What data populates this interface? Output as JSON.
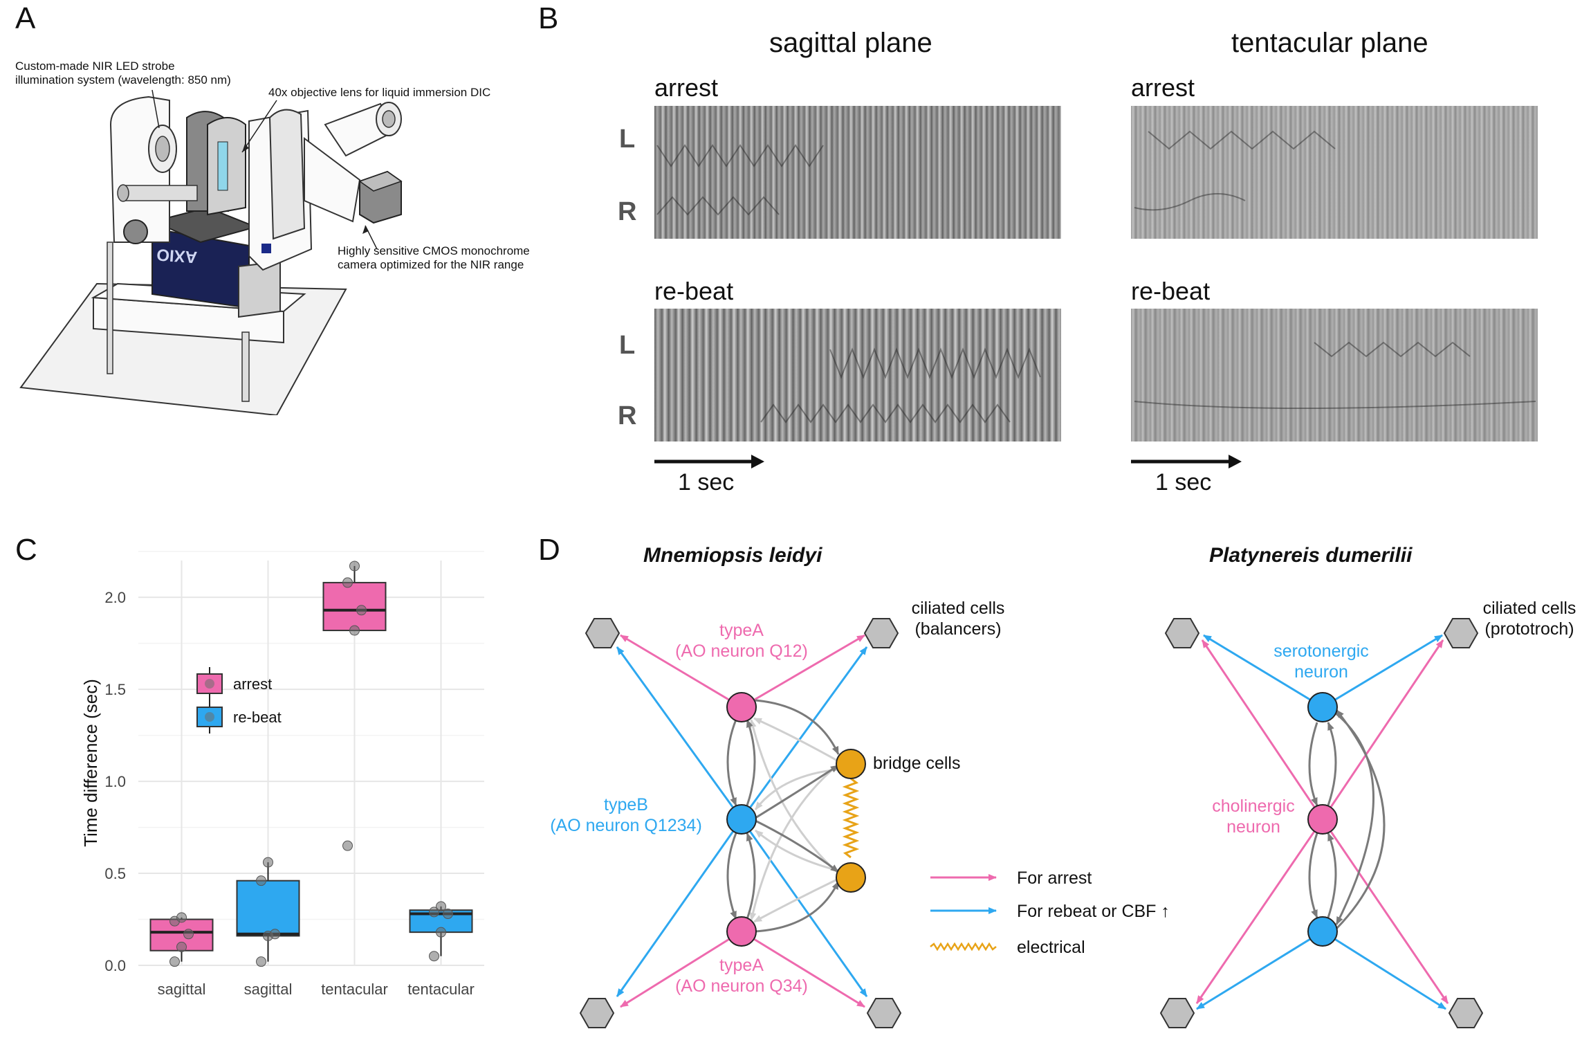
{
  "panels": {
    "a": {
      "letter": "A",
      "annotations": {
        "led": [
          "Custom-made NIR LED strobe",
          "illumination system (wavelength: 850 nm)"
        ],
        "objective": "40x objective lens for liquid immersion DIC",
        "camera": [
          "Highly sensitive CMOS monochrome",
          "camera optimized for the NIR range"
        ],
        "brand": "AXIO"
      }
    },
    "b": {
      "letter": "B",
      "planes": [
        "sagittal plane",
        "tentacular plane"
      ],
      "rows": [
        "arrest",
        "re-beat"
      ],
      "left_label": "L",
      "right_label": "R",
      "scale": "1 sec"
    },
    "c": {
      "letter": "C",
      "legend": [
        "arrest",
        "re-beat"
      ]
    },
    "d": {
      "letter": "D",
      "left_species": "Mnemiopsis leidyi",
      "right_species": "Platynereis dumerilii",
      "left": {
        "typeA_top": [
          "typeA",
          "(AO neuron Q12)"
        ],
        "typeB": [
          "typeB",
          "(AO neuron Q1234)"
        ],
        "typeA_bottom": [
          "typeA",
          "(AO neuron Q34)"
        ],
        "bridge": "bridge cells",
        "ciliated": [
          "ciliated cells",
          "(balancers)"
        ]
      },
      "right": {
        "serotonergic": [
          "serotonergic",
          "neuron"
        ],
        "cholinergic": [
          "cholinergic",
          "neuron"
        ],
        "ciliated": [
          "ciliated cells",
          "(prototroch)"
        ]
      },
      "legend": [
        "For arrest",
        "For rebeat or CBF ↑",
        "electrical"
      ]
    }
  },
  "colors": {
    "pink": "#EE6AAE",
    "blue": "#2EA8F0",
    "orange": "#E8A317",
    "gray": "#7a7a7a"
  },
  "chart_data": {
    "type": "box",
    "ylabel": "Time difference (sec)",
    "xlabel": "",
    "categories": [
      "sagittal",
      "sagittal",
      "tentacular",
      "tentacular"
    ],
    "ylim": [
      0,
      2.2
    ],
    "yticks": [
      0.0,
      0.5,
      1.0,
      1.5,
      2.0
    ],
    "ytick_labels": [
      "0.0",
      "0.5",
      "1.0",
      "1.5",
      "2.0"
    ],
    "grid": true,
    "legend_position": "upper-left",
    "series": [
      {
        "name": "arrest",
        "color": "#EE6AAE",
        "boxes": [
          {
            "category_index": 0,
            "q1": 0.08,
            "median": 0.18,
            "q3": 0.25,
            "whisker_low": 0.02,
            "whisker_high": 0.26,
            "points": [
              0.02,
              0.1,
              0.17,
              0.24,
              0.26
            ]
          },
          {
            "category_index": 2,
            "q1": 1.82,
            "median": 1.93,
            "q3": 2.08,
            "whisker_low": 1.82,
            "whisker_high": 2.17,
            "points": [
              0.65,
              1.82,
              1.93,
              2.08,
              2.17
            ]
          }
        ]
      },
      {
        "name": "re-beat",
        "color": "#2EA8F0",
        "boxes": [
          {
            "category_index": 1,
            "q1": 0.16,
            "median": 0.17,
            "q3": 0.46,
            "whisker_low": 0.02,
            "whisker_high": 0.56,
            "points": [
              0.02,
              0.16,
              0.17,
              0.46,
              0.56
            ]
          },
          {
            "category_index": 3,
            "q1": 0.18,
            "median": 0.28,
            "q3": 0.3,
            "whisker_low": 0.05,
            "whisker_high": 0.32,
            "points": [
              0.05,
              0.18,
              0.28,
              0.29,
              0.32
            ]
          }
        ]
      }
    ]
  }
}
